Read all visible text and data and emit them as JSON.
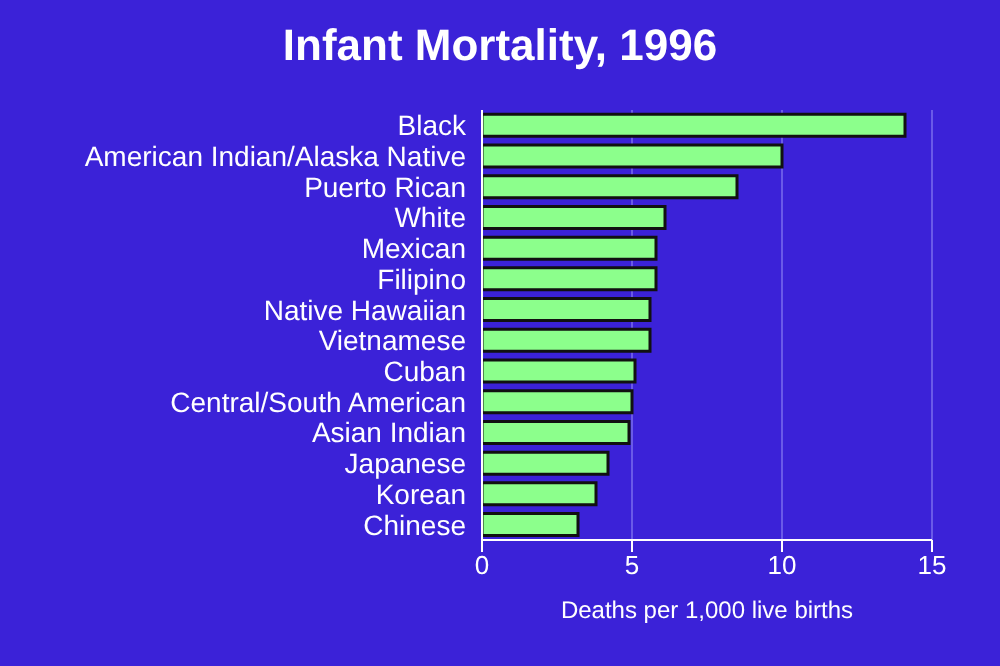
{
  "chart_data": {
    "type": "bar",
    "orientation": "horizontal",
    "title": "Infant Mortality, 1996",
    "xlabel": "Deaths per 1,000 live births",
    "categories": [
      "Black",
      "American Indian/Alaska Native",
      "Puerto Rican",
      "White",
      "Mexican",
      "Filipino",
      "Native Hawaiian",
      "Vietnamese",
      "Cuban",
      "Central/South American",
      "Asian Indian",
      "Japanese",
      "Korean",
      "Chinese"
    ],
    "values": [
      14.1,
      10.0,
      8.5,
      6.1,
      5.8,
      5.8,
      5.6,
      5.6,
      5.1,
      5.0,
      4.9,
      4.2,
      3.8,
      3.2
    ],
    "color": "#8cff8c",
    "xlim": [
      0,
      15
    ],
    "xticks": [
      0,
      5,
      10,
      15
    ],
    "grid": "x"
  }
}
